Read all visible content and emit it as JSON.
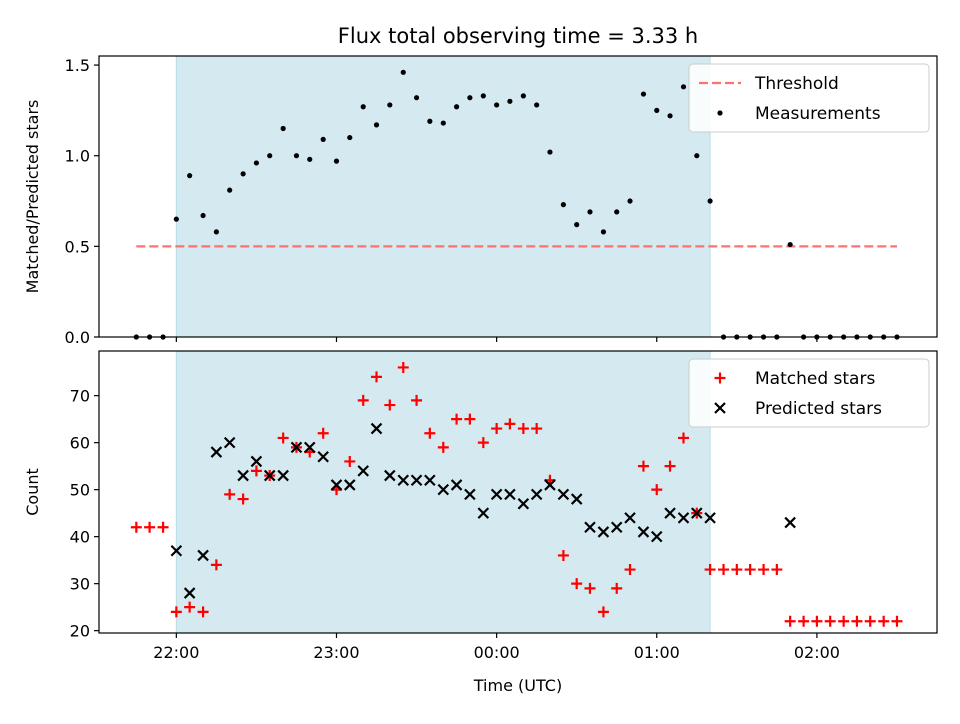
{
  "chart_data": {
    "title": "Flux total observing time = 3.33 h",
    "xlabel": "Time (UTC)",
    "x_tick_labels": [
      "22:00",
      "23:00",
      "00:00",
      "01:00",
      "02:00"
    ],
    "x_ticks_hours": [
      0,
      1,
      2,
      3,
      4
    ],
    "x_range_hours": [
      -0.483,
      4.75
    ],
    "shaded_interval_hours": [
      0,
      3.333
    ],
    "shade_color": "#d4eaf0",
    "panels": [
      {
        "type": "scatter",
        "ylabel": "Matched/Predicted stars",
        "ylim": [
          0,
          1.55
        ],
        "y_ticks": [
          0,
          0.5,
          1.0,
          1.5
        ],
        "y_tick_labels": [
          "0.0",
          "0.5",
          "1.0",
          "1.5"
        ],
        "legend_position": "top-right",
        "threshold": {
          "name": "Threshold",
          "value": 0.5,
          "x_range_hours": [
            -0.25,
            4.5
          ],
          "color": "#ff7070"
        },
        "series": [
          {
            "name": "Measurements",
            "color": "#000000",
            "marker": "dot",
            "x": [
              -0.25,
              -0.167,
              -0.083,
              0,
              0.083,
              0.167,
              0.25,
              0.333,
              0.417,
              0.5,
              0.583,
              0.667,
              0.75,
              0.833,
              0.917,
              1.0,
              1.083,
              1.167,
              1.25,
              1.333,
              1.417,
              1.5,
              1.583,
              1.667,
              1.75,
              1.833,
              1.917,
              2.0,
              2.083,
              2.167,
              2.25,
              2.333,
              2.417,
              2.5,
              2.583,
              2.667,
              2.75,
              2.833,
              2.917,
              3.0,
              3.083,
              3.167,
              3.25,
              3.333,
              3.417,
              3.5,
              3.583,
              3.667,
              3.75,
              3.833,
              3.917,
              4.0,
              4.083,
              4.167,
              4.25,
              4.333,
              4.417,
              4.5
            ],
            "y": [
              0,
              0,
              0,
              0.65,
              0.89,
              0.67,
              0.58,
              0.81,
              0.9,
              0.96,
              1.0,
              1.15,
              1.0,
              0.98,
              1.09,
              0.97,
              1.1,
              1.27,
              1.17,
              1.28,
              1.46,
              1.32,
              1.19,
              1.18,
              1.27,
              1.32,
              1.33,
              1.28,
              1.3,
              1.33,
              1.28,
              1.02,
              0.73,
              0.62,
              0.69,
              0.58,
              0.69,
              0.75,
              1.34,
              1.25,
              1.22,
              1.38,
              1.0,
              0.75,
              0,
              0,
              0,
              0,
              0,
              0.51,
              0,
              0,
              0,
              0,
              0,
              0,
              0,
              0
            ]
          }
        ]
      },
      {
        "type": "scatter",
        "ylabel": "Count",
        "ylim": [
          19.5,
          79.5
        ],
        "y_ticks": [
          20,
          30,
          40,
          50,
          60,
          70
        ],
        "y_tick_labels": [
          "20",
          "30",
          "40",
          "50",
          "60",
          "70"
        ],
        "legend_position": "top-right",
        "series": [
          {
            "name": "Matched stars",
            "color": "#ff0000",
            "marker": "plus",
            "x": [
              -0.25,
              -0.167,
              -0.083,
              0,
              0.083,
              0.167,
              0.25,
              0.333,
              0.417,
              0.5,
              0.583,
              0.667,
              0.75,
              0.833,
              0.917,
              1.0,
              1.083,
              1.167,
              1.25,
              1.333,
              1.417,
              1.5,
              1.583,
              1.667,
              1.75,
              1.833,
              1.917,
              2.0,
              2.083,
              2.167,
              2.25,
              2.333,
              2.417,
              2.5,
              2.583,
              2.667,
              2.75,
              2.833,
              2.917,
              3.0,
              3.083,
              3.167,
              3.25,
              3.333,
              3.417,
              3.5,
              3.583,
              3.667,
              3.75,
              3.833,
              3.917,
              4.0,
              4.083,
              4.167,
              4.25,
              4.333,
              4.417,
              4.5
            ],
            "y": [
              42,
              42,
              42,
              24,
              25,
              24,
              34,
              49,
              48,
              54,
              53,
              61,
              59,
              58,
              62,
              50,
              56,
              69,
              74,
              68,
              76,
              69,
              62,
              59,
              65,
              65,
              60,
              63,
              64,
              63,
              63,
              52,
              36,
              30,
              29,
              24,
              29,
              33,
              55,
              50,
              55,
              61,
              45,
              33,
              33,
              33,
              33,
              33,
              33,
              22,
              22,
              22,
              22,
              22,
              22,
              22,
              22,
              22
            ]
          },
          {
            "name": "Predicted stars",
            "color": "#000000",
            "marker": "x",
            "x": [
              0,
              0.083,
              0.167,
              0.25,
              0.333,
              0.417,
              0.5,
              0.583,
              0.667,
              0.75,
              0.833,
              0.917,
              1.0,
              1.083,
              1.167,
              1.25,
              1.333,
              1.417,
              1.5,
              1.583,
              1.667,
              1.75,
              1.833,
              1.917,
              2.0,
              2.083,
              2.167,
              2.25,
              2.333,
              2.417,
              2.5,
              2.583,
              2.667,
              2.75,
              2.833,
              2.917,
              3.0,
              3.083,
              3.167,
              3.25,
              3.333,
              3.833
            ],
            "y": [
              37,
              28,
              36,
              58,
              60,
              53,
              56,
              53,
              53,
              59,
              59,
              57,
              51,
              51,
              54,
              63,
              53,
              52,
              52,
              52,
              50,
              51,
              49,
              45,
              49,
              49,
              47,
              49,
              51,
              49,
              48,
              42,
              41,
              42,
              44,
              41,
              40,
              45,
              44,
              45,
              44,
              43
            ]
          }
        ]
      }
    ]
  }
}
